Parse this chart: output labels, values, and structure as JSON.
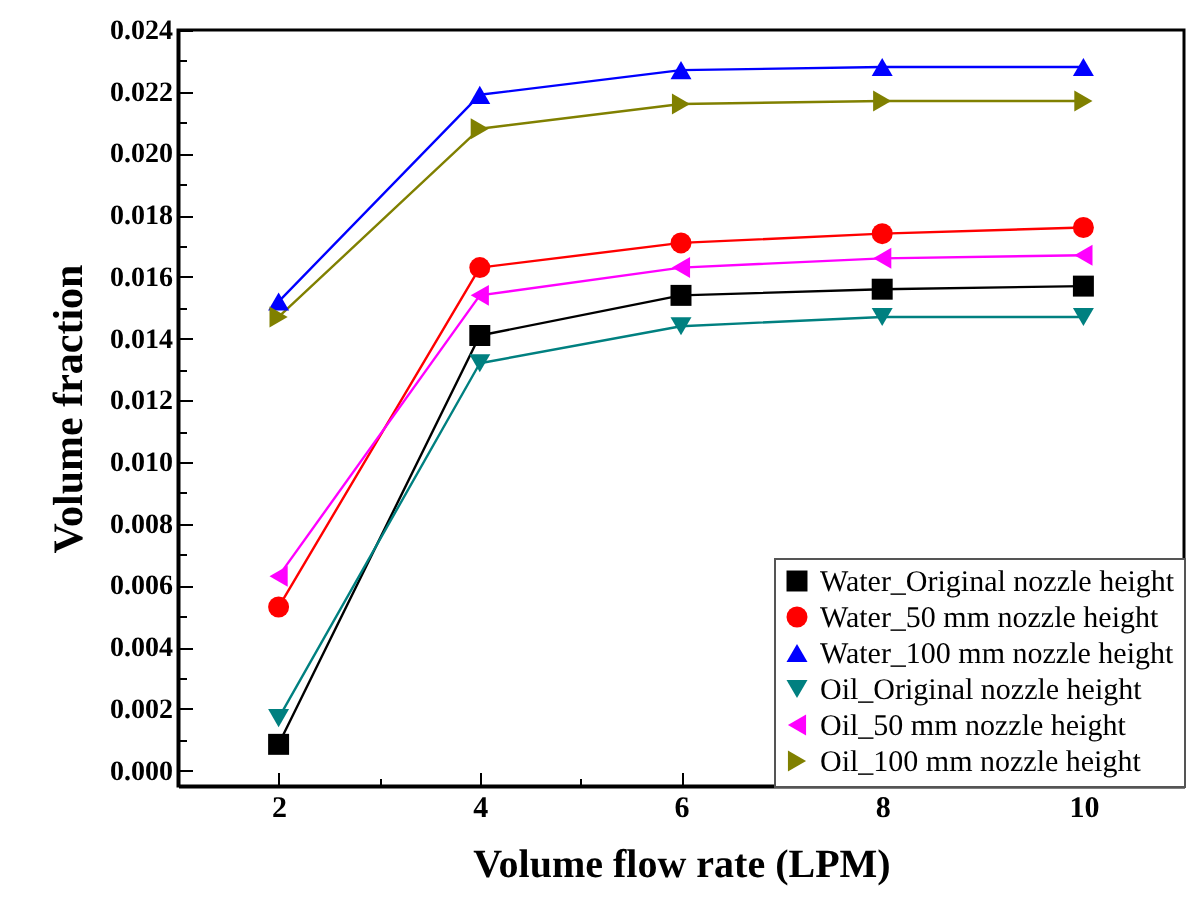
{
  "chart_data": {
    "type": "line",
    "xlabel": "Volume flow rate (LPM)",
    "ylabel": "Volume fraction",
    "x": [
      2,
      4,
      6,
      8,
      10
    ],
    "xlim": [
      1,
      11
    ],
    "xticks": [
      {
        "value": 1,
        "label": null
      },
      2,
      {
        "value": 3,
        "label": null
      },
      4,
      {
        "value": 5,
        "label": null
      },
      6,
      {
        "value": 7,
        "label": null
      },
      8,
      {
        "value": 9,
        "label": null
      },
      10
    ],
    "ylim": [
      -0.0005,
      0.024
    ],
    "yticks": [
      {
        "value": 0,
        "label": "0.000"
      },
      {
        "value": 0.001,
        "label": null
      },
      0.002,
      {
        "value": 0.003,
        "label": null
      },
      0.004,
      {
        "value": 0.005,
        "label": null
      },
      0.006,
      {
        "value": 0.007,
        "label": null
      },
      0.008,
      {
        "value": 0.009,
        "label": null
      },
      {
        "value": 0.01,
        "label": "0.010"
      },
      {
        "value": 0.011,
        "label": null
      },
      0.012,
      {
        "value": 0.013,
        "label": null
      },
      0.014,
      {
        "value": 0.015,
        "label": null
      },
      0.016,
      {
        "value": 0.017,
        "label": null
      },
      0.018,
      {
        "value": 0.019,
        "label": null
      },
      {
        "value": 0.02,
        "label": "0.020"
      },
      {
        "value": 0.021,
        "label": null
      },
      0.022,
      {
        "value": 0.023,
        "label": null
      },
      0.024
    ],
    "grid": false,
    "legend": "bottom right",
    "line_style": "solid",
    "series": [
      {
        "name": "Water_Original nozzle height",
        "color": "#000000",
        "marker": "square",
        "values": [
          0.00085,
          0.0141,
          0.0154,
          0.0156,
          0.0157
        ]
      },
      {
        "name": "Water_50 mm nozzle height",
        "color": "#ff0000",
        "marker": "circle",
        "values": [
          0.0053,
          0.0163,
          0.0171,
          0.0174,
          0.0176
        ]
      },
      {
        "name": "Water_100 mm nozzle height",
        "color": "#0000ff",
        "marker": "triangle",
        "values": [
          0.0152,
          0.0219,
          0.0227,
          0.0228,
          0.0228
        ]
      },
      {
        "name": "Oil_Original nozzle height",
        "color": "#008080",
        "marker": "triangle-down",
        "values": [
          0.0017,
          0.0132,
          0.0144,
          0.0147,
          0.0147
        ]
      },
      {
        "name": "Oil_50 mm nozzle height",
        "color": "#ff00ff",
        "marker": "triangle-left",
        "values": [
          0.0063,
          0.0154,
          0.0163,
          0.0166,
          0.0167
        ]
      },
      {
        "name": "Oil_100 mm nozzle height",
        "color": "#808000",
        "marker": "triangle-right",
        "values": [
          0.0147,
          0.0208,
          0.0216,
          0.0217,
          0.0217
        ]
      }
    ]
  }
}
